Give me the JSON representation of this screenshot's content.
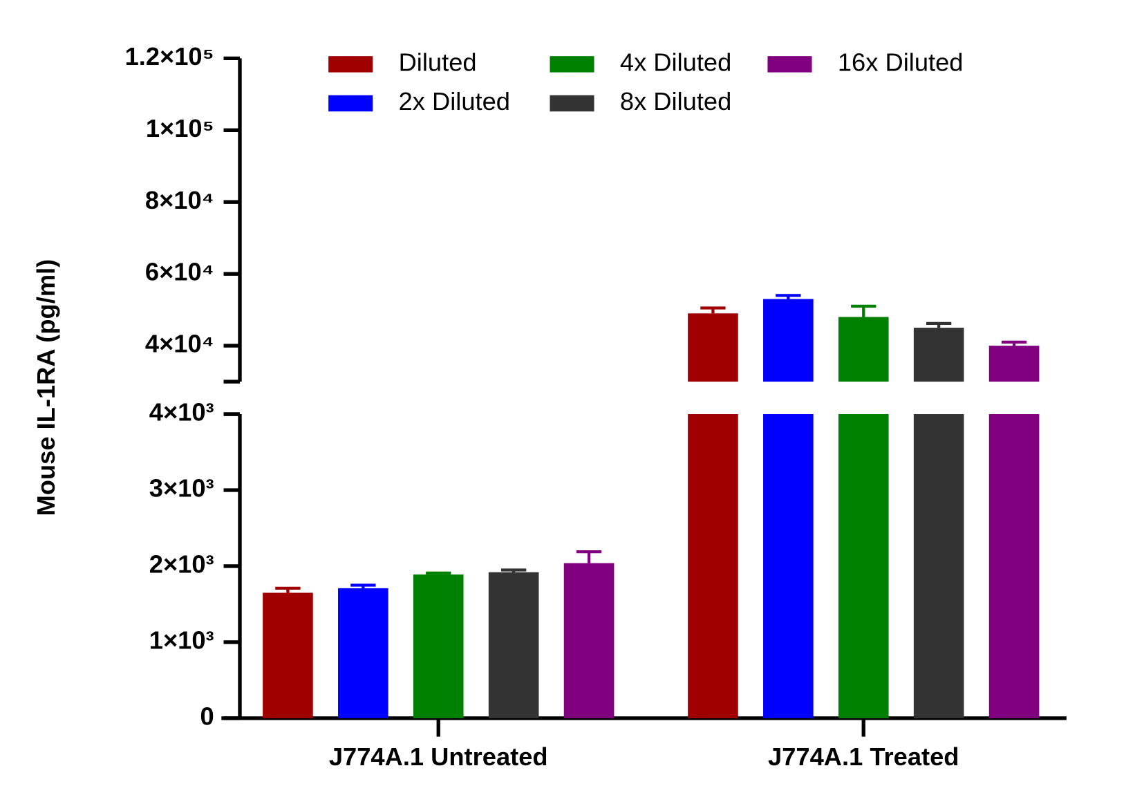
{
  "chart_data": {
    "type": "bar",
    "ylabel": "Mouse IL-1RA (pg/ml)",
    "categories": [
      "J774A.1 Untreated",
      "J774A.1 Treated"
    ],
    "series": [
      {
        "name": "Diluted",
        "color": "#a00000",
        "values": [
          1650,
          49000
        ],
        "errors": [
          60,
          1500
        ]
      },
      {
        "name": "2x Diluted",
        "color": "#0000ff",
        "values": [
          1710,
          53000
        ],
        "errors": [
          40,
          1000
        ]
      },
      {
        "name": "4x Diluted",
        "color": "#008000",
        "values": [
          1890,
          48000
        ],
        "errors": [
          20,
          3000
        ]
      },
      {
        "name": "8x Diluted",
        "color": "#333333",
        "values": [
          1920,
          45000
        ],
        "errors": [
          30,
          1200
        ]
      },
      {
        "name": "16x Diluted",
        "color": "#800080",
        "values": [
          2040,
          40000
        ],
        "errors": [
          150,
          1000
        ]
      }
    ],
    "y_segments": [
      {
        "ylim": [
          0,
          4000
        ],
        "yticks": [
          0,
          {
            "value": 1000,
            "label": "1×10³"
          },
          {
            "value": 2000,
            "label": "2×10³"
          },
          {
            "value": 3000,
            "label": "3×10³"
          },
          {
            "value": 4000,
            "label": "4×10³"
          }
        ]
      },
      {
        "ylim": [
          30000,
          120000
        ],
        "yticks": [
          {
            "value": 40000,
            "label": "4×10⁴"
          },
          {
            "value": 60000,
            "label": "6×10⁴"
          },
          {
            "value": 80000,
            "label": "8×10⁴"
          },
          {
            "value": 100000,
            "label": "1×10⁵"
          },
          {
            "value": 120000,
            "label": "1.2×10⁵"
          }
        ]
      }
    ],
    "legend": "top"
  }
}
